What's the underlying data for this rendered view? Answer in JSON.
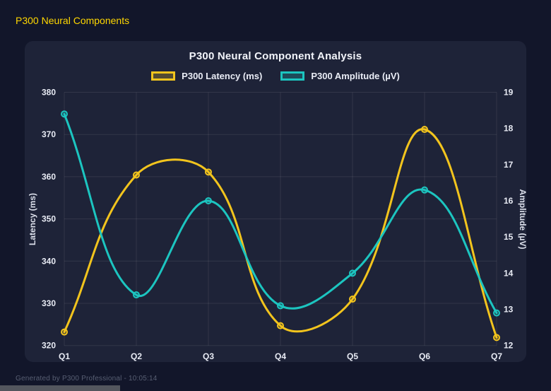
{
  "page_title": "P300 Neural Components",
  "footer": {
    "generated_text": "Generated by P300 Professional - 10:05:14"
  },
  "colors": {
    "background": "#12162a",
    "panel": "#1e2338",
    "title_accent": "#ffd700",
    "latency_series": "#f2c41d",
    "amplitude_series": "#1cc5c0",
    "tick_text": "#e8ebf4",
    "grid": "rgba(255,255,255,0.09)"
  },
  "chart_data": {
    "type": "line",
    "title": "P300 Neural Component Analysis",
    "categories": [
      "Q1",
      "Q2",
      "Q3",
      "Q4",
      "Q5",
      "Q6",
      "Q7"
    ],
    "series": [
      {
        "name": "P300 Latency (ms)",
        "axis": "left",
        "color": "#f2c41d",
        "values": [
          323.2,
          360.4,
          361.1,
          324.7,
          331.0,
          371.2,
          321.9
        ]
      },
      {
        "name": "P300 Amplitude (µV)",
        "axis": "right",
        "color": "#1cc5c0",
        "values": [
          18.4,
          13.4,
          16.0,
          13.1,
          14.0,
          16.3,
          12.9
        ]
      }
    ],
    "left_axis": {
      "label": "Latency (ms)",
      "min": 320,
      "max": 380,
      "ticks": [
        380,
        370,
        360,
        350,
        340,
        330,
        320
      ]
    },
    "right_axis": {
      "label": "Amplitude (µV)",
      "min": 12,
      "max": 19,
      "ticks": [
        19,
        18,
        17,
        16,
        15,
        14,
        13,
        12
      ]
    },
    "legend_position": "top",
    "grid": true,
    "line_tension": 0.4
  }
}
